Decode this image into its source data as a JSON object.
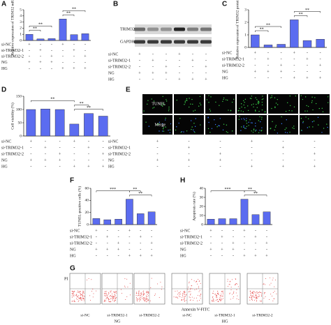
{
  "chart_data": [
    {
      "type": "bar",
      "panel": "A",
      "y_label": "Relative expression of TRIM32 mRNA",
      "values": [
        1.0,
        0.25,
        0.3,
        3.5,
        0.95,
        1.1
      ],
      "color": "#5b6cf0",
      "ylim": [
        0,
        5
      ],
      "yticks": [
        0,
        1,
        2,
        3,
        4,
        5
      ],
      "significance": [
        "**",
        "**",
        "**",
        "**"
      ],
      "conditions": [
        {
          "name": "si-NC",
          "signs": [
            "+",
            "-",
            "-",
            "+",
            "-",
            "-"
          ]
        },
        {
          "name": "si-TRIM32-1",
          "signs": [
            "-",
            "+",
            "-",
            "-",
            "+",
            "-"
          ]
        },
        {
          "name": "si-TRIM32-2",
          "signs": [
            "-",
            "-",
            "+",
            "-",
            "-",
            "+"
          ]
        },
        {
          "name": "NG",
          "signs": [
            "+",
            "+",
            "+",
            "-",
            "-",
            "-"
          ]
        },
        {
          "name": "HG",
          "signs": [
            "-",
            "-",
            "-",
            "+",
            "+",
            "+"
          ]
        }
      ]
    },
    {
      "type": "bar",
      "panel": "C",
      "y_label": "Relative expression of TRIM32 protein",
      "values": [
        1.0,
        0.2,
        0.25,
        2.2,
        0.55,
        0.65
      ],
      "color": "#5b6cf0",
      "ylim": [
        0,
        3
      ],
      "yticks": [
        0,
        1,
        2,
        3
      ],
      "significance": [
        "**",
        "**",
        "**",
        "**"
      ],
      "conditions": [
        {
          "name": "si-NC",
          "signs": [
            "+",
            "-",
            "-",
            "+",
            "-",
            "-"
          ]
        },
        {
          "name": "si-TRIM32-1",
          "signs": [
            "-",
            "+",
            "-",
            "-",
            "+",
            "-"
          ]
        },
        {
          "name": "si-TRIM32-2",
          "signs": [
            "-",
            "-",
            "+",
            "-",
            "-",
            "+"
          ]
        },
        {
          "name": "NG",
          "signs": [
            "+",
            "+",
            "+",
            "-",
            "-",
            "-"
          ]
        },
        {
          "name": "HG",
          "signs": [
            "-",
            "-",
            "-",
            "+",
            "+",
            "+"
          ]
        }
      ]
    },
    {
      "type": "bar",
      "panel": "D",
      "y_label": "Cell viability (%)",
      "values": [
        100,
        102,
        100,
        45,
        85,
        75
      ],
      "color": "#5b6cf0",
      "ylim": [
        0,
        150
      ],
      "yticks": [
        0,
        50,
        100,
        150
      ],
      "significance": [
        "**",
        "**",
        "**"
      ],
      "conditions": [
        {
          "name": "si-NC",
          "signs": [
            "+",
            "-",
            "-",
            "+",
            "-",
            "-"
          ]
        },
        {
          "name": "si-TRIM32-1",
          "signs": [
            "-",
            "+",
            "-",
            "-",
            "+",
            "-"
          ]
        },
        {
          "name": "si-TRIM32-2",
          "signs": [
            "-",
            "-",
            "+",
            "-",
            "-",
            "+"
          ]
        },
        {
          "name": "NG",
          "signs": [
            "+",
            "+",
            "+",
            "-",
            "-",
            "-"
          ]
        },
        {
          "name": "HG",
          "signs": [
            "-",
            "-",
            "-",
            "+",
            "+",
            "+"
          ]
        }
      ]
    },
    {
      "type": "bar",
      "panel": "F",
      "y_label": "TUNEL-positive cells (%)",
      "values": [
        10,
        8,
        9,
        42,
        18,
        21
      ],
      "color": "#5b6cf0",
      "ylim": [
        0,
        60
      ],
      "yticks": [
        0,
        20,
        40,
        60
      ],
      "significance": [
        "***",
        "**",
        "**"
      ],
      "conditions": [
        {
          "name": "si-NC",
          "signs": [
            "+",
            "-",
            "-",
            "+",
            "-",
            "-"
          ]
        },
        {
          "name": "si-TRIM32-1",
          "signs": [
            "-",
            "+",
            "-",
            "-",
            "+",
            "-"
          ]
        },
        {
          "name": "si-TRIM32-2",
          "signs": [
            "-",
            "-",
            "+",
            "-",
            "-",
            "+"
          ]
        },
        {
          "name": "NG",
          "signs": [
            "+",
            "+",
            "+",
            "-",
            "-",
            "-"
          ]
        },
        {
          "name": "HG",
          "signs": [
            "-",
            "-",
            "-",
            "+",
            "+",
            "+"
          ]
        }
      ]
    },
    {
      "type": "bar",
      "panel": "H",
      "y_label": "Apoptosis rate (%)",
      "values": [
        6,
        6.5,
        6.5,
        28,
        11,
        14
      ],
      "color": "#5b6cf0",
      "ylim": [
        0,
        40
      ],
      "yticks": [
        0,
        10,
        20,
        30,
        40
      ],
      "significance": [
        "***",
        "**",
        "**"
      ],
      "conditions": [
        {
          "name": "si-NC",
          "signs": [
            "+",
            "-",
            "-",
            "+",
            "-",
            "-"
          ]
        },
        {
          "name": "si-TRIM32-1",
          "signs": [
            "-",
            "+",
            "-",
            "-",
            "+",
            "-"
          ]
        },
        {
          "name": "si-TRIM32-2",
          "signs": [
            "-",
            "-",
            "+",
            "-",
            "-",
            "+"
          ]
        },
        {
          "name": "NG",
          "signs": [
            "+",
            "+",
            "+",
            "-",
            "-",
            "-"
          ]
        },
        {
          "name": "HG",
          "signs": [
            "-",
            "-",
            "-",
            "+",
            "+",
            "+"
          ]
        }
      ]
    }
  ],
  "blot": {
    "panel": "B",
    "bands": [
      "TRIM32",
      "GAPDH"
    ],
    "conditions": [
      {
        "name": "si-NC",
        "signs": [
          "+",
          "-",
          "-",
          "+",
          "-",
          "-"
        ]
      },
      {
        "name": "si-TRIM32-1",
        "signs": [
          "-",
          "+",
          "-",
          "-",
          "+",
          "-"
        ]
      },
      {
        "name": "si-TRIM32-2",
        "signs": [
          "-",
          "-",
          "+",
          "-",
          "-",
          "+"
        ]
      },
      {
        "name": "NG",
        "signs": [
          "+",
          "+",
          "+",
          "-",
          "-",
          "-"
        ]
      },
      {
        "name": "HG",
        "signs": [
          "-",
          "-",
          "-",
          "+",
          "+",
          "+"
        ]
      }
    ]
  },
  "tunel": {
    "panel": "E",
    "rows": [
      "TUNEL",
      "Merge"
    ],
    "conditions": [
      {
        "name": "si-NC",
        "signs": [
          "+",
          "-",
          "-",
          "+",
          "-",
          "-"
        ]
      },
      {
        "name": "si-TRIM32-1",
        "signs": [
          "-",
          "+",
          "-",
          "-",
          "+",
          "-"
        ]
      },
      {
        "name": "si-TRIM32-2",
        "signs": [
          "-",
          "-",
          "+",
          "-",
          "-",
          "+"
        ]
      },
      {
        "name": "NG",
        "signs": [
          "+",
          "+",
          "+",
          "-",
          "-",
          "-"
        ]
      },
      {
        "name": "HG",
        "signs": [
          "-",
          "-",
          "-",
          "+",
          "+",
          "+"
        ]
      }
    ]
  },
  "flow": {
    "panel": "G",
    "y_label": "PI",
    "x_label": "Annexin V-FITC",
    "samples": [
      "si-NC",
      "si-TRIM32-1",
      "si-TRIM32-2",
      "si-NC",
      "si-TRIM32-1",
      "si-TRIM32-2"
    ],
    "groups": [
      "NG",
      "HG"
    ]
  }
}
